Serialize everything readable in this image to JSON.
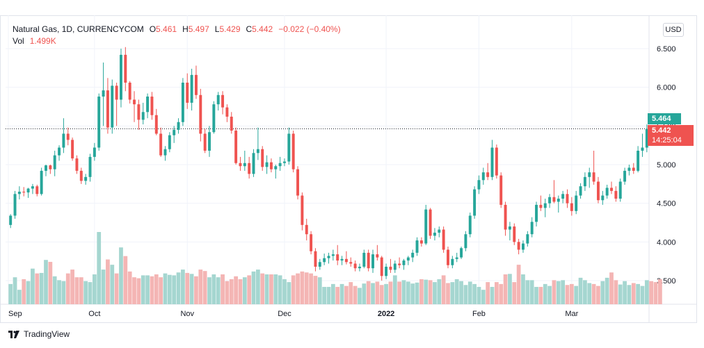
{
  "legend": {
    "symbol": "Natural Gas, 1D, CURRENCYCOM",
    "o_label": "O",
    "o_value": "5.461",
    "h_label": "H",
    "h_value": "5.497",
    "l_label": "L",
    "l_value": "5.429",
    "c_label": "C",
    "c_value": "5.442",
    "change": "−0.022 (−0.40%)",
    "vol_label": "Vol",
    "vol_value": "1.499K"
  },
  "currency_button": "USD",
  "price_tags": {
    "bid": "5.464",
    "last": "5.442",
    "countdown": "14:25:04"
  },
  "footer": {
    "brand": "TradingView"
  },
  "colors": {
    "up": "#26a69a",
    "down": "#ef5350",
    "up_vol": "#a5d6d0",
    "down_vol": "#f4b5b4"
  },
  "chart_data": {
    "type": "candlestick",
    "yaxis": {
      "range": [
        3.25,
        6.6
      ],
      "ticks": [
        "6.500",
        "6.000",
        "5.500",
        "5.000",
        "4.500",
        "4.000",
        "3.500"
      ]
    },
    "xaxis": {
      "labels": [
        "Sep",
        "Oct",
        "Nov",
        "Dec",
        "2022",
        "Feb",
        "Mar"
      ]
    },
    "last_price_line": 5.464,
    "candles": [
      {
        "o": 4.22,
        "h": 4.36,
        "l": 4.18,
        "c": 4.34
      },
      {
        "o": 4.34,
        "h": 4.66,
        "l": 4.3,
        "c": 4.62
      },
      {
        "o": 4.62,
        "h": 4.72,
        "l": 4.55,
        "c": 4.65
      },
      {
        "o": 4.65,
        "h": 4.71,
        "l": 4.59,
        "c": 4.64
      },
      {
        "o": 4.64,
        "h": 4.7,
        "l": 4.57,
        "c": 4.69
      },
      {
        "o": 4.69,
        "h": 4.75,
        "l": 4.62,
        "c": 4.72
      },
      {
        "o": 4.72,
        "h": 4.74,
        "l": 4.59,
        "c": 4.62
      },
      {
        "o": 4.62,
        "h": 4.96,
        "l": 4.6,
        "c": 4.92
      },
      {
        "o": 4.92,
        "h": 5.0,
        "l": 4.85,
        "c": 4.99
      },
      {
        "o": 4.99,
        "h": 5.0,
        "l": 4.88,
        "c": 4.94
      },
      {
        "o": 4.94,
        "h": 5.18,
        "l": 4.85,
        "c": 5.12
      },
      {
        "o": 5.12,
        "h": 5.25,
        "l": 5.05,
        "c": 5.22
      },
      {
        "o": 5.22,
        "h": 5.6,
        "l": 5.15,
        "c": 5.4
      },
      {
        "o": 5.4,
        "h": 5.48,
        "l": 5.25,
        "c": 5.32
      },
      {
        "o": 5.32,
        "h": 5.35,
        "l": 5.05,
        "c": 5.08
      },
      {
        "o": 5.08,
        "h": 5.12,
        "l": 4.88,
        "c": 4.92
      },
      {
        "o": 4.92,
        "h": 4.96,
        "l": 4.75,
        "c": 4.79
      },
      {
        "o": 4.79,
        "h": 4.88,
        "l": 4.74,
        "c": 4.84
      },
      {
        "o": 4.84,
        "h": 5.14,
        "l": 4.78,
        "c": 5.1
      },
      {
        "o": 5.1,
        "h": 5.28,
        "l": 5.05,
        "c": 5.22
      },
      {
        "o": 5.22,
        "h": 5.92,
        "l": 5.18,
        "c": 5.88
      },
      {
        "o": 5.88,
        "h": 6.32,
        "l": 5.5,
        "c": 5.96
      },
      {
        "o": 5.96,
        "h": 6.12,
        "l": 5.4,
        "c": 5.48
      },
      {
        "o": 5.48,
        "h": 6.1,
        "l": 5.4,
        "c": 6.02
      },
      {
        "o": 6.02,
        "h": 6.06,
        "l": 5.5,
        "c": 5.84
      },
      {
        "o": 5.84,
        "h": 6.5,
        "l": 5.74,
        "c": 6.42
      },
      {
        "o": 6.42,
        "h": 6.52,
        "l": 5.95,
        "c": 6.06
      },
      {
        "o": 6.06,
        "h": 6.08,
        "l": 5.79,
        "c": 5.84
      },
      {
        "o": 5.84,
        "h": 5.95,
        "l": 5.55,
        "c": 5.78
      },
      {
        "o": 5.78,
        "h": 5.84,
        "l": 5.45,
        "c": 5.58
      },
      {
        "o": 5.58,
        "h": 5.8,
        "l": 5.52,
        "c": 5.68
      },
      {
        "o": 5.68,
        "h": 5.92,
        "l": 5.6,
        "c": 5.88
      },
      {
        "o": 5.88,
        "h": 5.94,
        "l": 5.58,
        "c": 5.64
      },
      {
        "o": 5.64,
        "h": 5.72,
        "l": 5.38,
        "c": 5.4
      },
      {
        "o": 5.4,
        "h": 5.48,
        "l": 5.1,
        "c": 5.12
      },
      {
        "o": 5.12,
        "h": 5.24,
        "l": 5.05,
        "c": 5.2
      },
      {
        "o": 5.2,
        "h": 5.42,
        "l": 5.16,
        "c": 5.38
      },
      {
        "o": 5.38,
        "h": 5.5,
        "l": 5.28,
        "c": 5.45
      },
      {
        "o": 5.45,
        "h": 5.6,
        "l": 5.4,
        "c": 5.55
      },
      {
        "o": 5.55,
        "h": 6.12,
        "l": 5.5,
        "c": 6.06
      },
      {
        "o": 6.06,
        "h": 6.18,
        "l": 5.72,
        "c": 5.8
      },
      {
        "o": 5.8,
        "h": 6.24,
        "l": 5.7,
        "c": 6.16
      },
      {
        "o": 6.16,
        "h": 6.28,
        "l": 5.85,
        "c": 5.9
      },
      {
        "o": 5.9,
        "h": 5.98,
        "l": 5.3,
        "c": 5.4
      },
      {
        "o": 5.4,
        "h": 5.46,
        "l": 5.15,
        "c": 5.18
      },
      {
        "o": 5.18,
        "h": 5.5,
        "l": 5.1,
        "c": 5.42
      },
      {
        "o": 5.42,
        "h": 5.82,
        "l": 5.4,
        "c": 5.78
      },
      {
        "o": 5.78,
        "h": 5.94,
        "l": 5.7,
        "c": 5.9
      },
      {
        "o": 5.9,
        "h": 5.95,
        "l": 5.65,
        "c": 5.74
      },
      {
        "o": 5.74,
        "h": 5.78,
        "l": 5.55,
        "c": 5.62
      },
      {
        "o": 5.62,
        "h": 5.68,
        "l": 5.4,
        "c": 5.44
      },
      {
        "o": 5.44,
        "h": 5.48,
        "l": 5.0,
        "c": 5.02
      },
      {
        "o": 5.02,
        "h": 5.1,
        "l": 4.92,
        "c": 4.98
      },
      {
        "o": 4.98,
        "h": 5.18,
        "l": 4.92,
        "c": 5.02
      },
      {
        "o": 5.02,
        "h": 5.1,
        "l": 4.82,
        "c": 4.88
      },
      {
        "o": 4.88,
        "h": 5.2,
        "l": 4.84,
        "c": 5.15
      },
      {
        "o": 5.15,
        "h": 5.48,
        "l": 5.06,
        "c": 5.2
      },
      {
        "o": 5.2,
        "h": 5.24,
        "l": 4.92,
        "c": 4.97
      },
      {
        "o": 4.97,
        "h": 5.12,
        "l": 4.88,
        "c": 5.03
      },
      {
        "o": 5.03,
        "h": 5.08,
        "l": 4.9,
        "c": 4.94
      },
      {
        "o": 4.94,
        "h": 5.0,
        "l": 4.82,
        "c": 4.98
      },
      {
        "o": 4.98,
        "h": 5.1,
        "l": 4.92,
        "c": 5.02
      },
      {
        "o": 5.02,
        "h": 5.08,
        "l": 4.98,
        "c": 5.04
      },
      {
        "o": 5.04,
        "h": 5.48,
        "l": 5.0,
        "c": 5.4
      },
      {
        "o": 5.4,
        "h": 5.44,
        "l": 4.9,
        "c": 4.94
      },
      {
        "o": 4.94,
        "h": 4.98,
        "l": 4.55,
        "c": 4.6
      },
      {
        "o": 4.6,
        "h": 4.64,
        "l": 4.15,
        "c": 4.22
      },
      {
        "o": 4.22,
        "h": 4.3,
        "l": 4.02,
        "c": 4.1
      },
      {
        "o": 4.1,
        "h": 4.14,
        "l": 3.84,
        "c": 3.88
      },
      {
        "o": 3.88,
        "h": 3.92,
        "l": 3.62,
        "c": 3.68
      },
      {
        "o": 3.68,
        "h": 3.78,
        "l": 3.64,
        "c": 3.74
      },
      {
        "o": 3.74,
        "h": 3.85,
        "l": 3.7,
        "c": 3.79
      },
      {
        "o": 3.79,
        "h": 3.86,
        "l": 3.72,
        "c": 3.82
      },
      {
        "o": 3.82,
        "h": 3.9,
        "l": 3.76,
        "c": 3.84
      },
      {
        "o": 3.84,
        "h": 3.96,
        "l": 3.7,
        "c": 3.76
      },
      {
        "o": 3.76,
        "h": 3.82,
        "l": 3.7,
        "c": 3.78
      },
      {
        "o": 3.78,
        "h": 3.88,
        "l": 3.71,
        "c": 3.74
      },
      {
        "o": 3.74,
        "h": 3.8,
        "l": 3.68,
        "c": 3.72
      },
      {
        "o": 3.72,
        "h": 3.76,
        "l": 3.62,
        "c": 3.66
      },
      {
        "o": 3.66,
        "h": 3.72,
        "l": 3.62,
        "c": 3.68
      },
      {
        "o": 3.68,
        "h": 3.9,
        "l": 3.66,
        "c": 3.86
      },
      {
        "o": 3.86,
        "h": 3.9,
        "l": 3.62,
        "c": 3.66
      },
      {
        "o": 3.66,
        "h": 3.9,
        "l": 3.6,
        "c": 3.84
      },
      {
        "o": 3.84,
        "h": 3.96,
        "l": 3.76,
        "c": 3.8
      },
      {
        "o": 3.8,
        "h": 3.82,
        "l": 3.5,
        "c": 3.56
      },
      {
        "o": 3.56,
        "h": 3.72,
        "l": 3.52,
        "c": 3.68
      },
      {
        "o": 3.68,
        "h": 3.78,
        "l": 3.6,
        "c": 3.64
      },
      {
        "o": 3.64,
        "h": 3.76,
        "l": 3.6,
        "c": 3.72
      },
      {
        "o": 3.72,
        "h": 3.8,
        "l": 3.66,
        "c": 3.7
      },
      {
        "o": 3.7,
        "h": 3.78,
        "l": 3.64,
        "c": 3.76
      },
      {
        "o": 3.76,
        "h": 3.82,
        "l": 3.7,
        "c": 3.8
      },
      {
        "o": 3.8,
        "h": 3.9,
        "l": 3.74,
        "c": 3.86
      },
      {
        "o": 3.86,
        "h": 4.06,
        "l": 3.82,
        "c": 4.02
      },
      {
        "o": 4.02,
        "h": 4.06,
        "l": 3.94,
        "c": 3.98
      },
      {
        "o": 3.98,
        "h": 4.48,
        "l": 3.96,
        "c": 4.42
      },
      {
        "o": 4.42,
        "h": 4.44,
        "l": 4.04,
        "c": 4.08
      },
      {
        "o": 4.08,
        "h": 4.18,
        "l": 4.02,
        "c": 4.12
      },
      {
        "o": 4.12,
        "h": 4.2,
        "l": 4.06,
        "c": 4.16
      },
      {
        "o": 4.16,
        "h": 4.2,
        "l": 3.86,
        "c": 3.9
      },
      {
        "o": 3.9,
        "h": 3.94,
        "l": 3.66,
        "c": 3.7
      },
      {
        "o": 3.7,
        "h": 3.82,
        "l": 3.66,
        "c": 3.78
      },
      {
        "o": 3.78,
        "h": 3.86,
        "l": 3.74,
        "c": 3.8
      },
      {
        "o": 3.8,
        "h": 3.94,
        "l": 3.78,
        "c": 3.92
      },
      {
        "o": 3.92,
        "h": 4.14,
        "l": 3.88,
        "c": 4.1
      },
      {
        "o": 4.1,
        "h": 4.38,
        "l": 4.06,
        "c": 4.34
      },
      {
        "o": 4.34,
        "h": 4.72,
        "l": 4.3,
        "c": 4.68
      },
      {
        "o": 4.68,
        "h": 4.86,
        "l": 4.62,
        "c": 4.8
      },
      {
        "o": 4.8,
        "h": 4.96,
        "l": 4.74,
        "c": 4.9
      },
      {
        "o": 4.9,
        "h": 5.02,
        "l": 4.8,
        "c": 4.84
      },
      {
        "o": 4.84,
        "h": 5.32,
        "l": 4.8,
        "c": 5.22
      },
      {
        "o": 5.22,
        "h": 5.26,
        "l": 4.82,
        "c": 4.86
      },
      {
        "o": 4.86,
        "h": 4.9,
        "l": 4.44,
        "c": 4.48
      },
      {
        "o": 4.48,
        "h": 4.52,
        "l": 4.08,
        "c": 4.16
      },
      {
        "o": 4.16,
        "h": 4.26,
        "l": 4.02,
        "c": 4.2
      },
      {
        "o": 4.2,
        "h": 4.24,
        "l": 3.96,
        "c": 4.0
      },
      {
        "o": 4.0,
        "h": 4.04,
        "l": 3.84,
        "c": 3.9
      },
      {
        "o": 3.9,
        "h": 4.02,
        "l": 3.86,
        "c": 3.98
      },
      {
        "o": 3.98,
        "h": 4.14,
        "l": 3.94,
        "c": 4.1
      },
      {
        "o": 4.1,
        "h": 4.32,
        "l": 4.06,
        "c": 4.26
      },
      {
        "o": 4.26,
        "h": 4.52,
        "l": 4.2,
        "c": 4.48
      },
      {
        "o": 4.48,
        "h": 4.6,
        "l": 4.4,
        "c": 4.44
      },
      {
        "o": 4.44,
        "h": 4.56,
        "l": 4.32,
        "c": 4.5
      },
      {
        "o": 4.5,
        "h": 4.62,
        "l": 4.44,
        "c": 4.58
      },
      {
        "o": 4.58,
        "h": 4.8,
        "l": 4.5,
        "c": 4.52
      },
      {
        "o": 4.52,
        "h": 4.6,
        "l": 4.38,
        "c": 4.56
      },
      {
        "o": 4.56,
        "h": 4.66,
        "l": 4.5,
        "c": 4.62
      },
      {
        "o": 4.62,
        "h": 4.68,
        "l": 4.44,
        "c": 4.5
      },
      {
        "o": 4.5,
        "h": 4.58,
        "l": 4.34,
        "c": 4.4
      },
      {
        "o": 4.4,
        "h": 4.66,
        "l": 4.36,
        "c": 4.6
      },
      {
        "o": 4.6,
        "h": 4.76,
        "l": 4.56,
        "c": 4.72
      },
      {
        "o": 4.72,
        "h": 4.9,
        "l": 4.66,
        "c": 4.84
      },
      {
        "o": 4.84,
        "h": 4.96,
        "l": 4.7,
        "c": 4.9
      },
      {
        "o": 4.9,
        "h": 5.18,
        "l": 4.74,
        "c": 4.78
      },
      {
        "o": 4.78,
        "h": 4.84,
        "l": 4.5,
        "c": 4.54
      },
      {
        "o": 4.54,
        "h": 4.66,
        "l": 4.48,
        "c": 4.6
      },
      {
        "o": 4.6,
        "h": 4.74,
        "l": 4.56,
        "c": 4.7
      },
      {
        "o": 4.7,
        "h": 4.78,
        "l": 4.62,
        "c": 4.66
      },
      {
        "o": 4.66,
        "h": 4.72,
        "l": 4.52,
        "c": 4.56
      },
      {
        "o": 4.56,
        "h": 4.82,
        "l": 4.52,
        "c": 4.78
      },
      {
        "o": 4.78,
        "h": 4.96,
        "l": 4.74,
        "c": 4.92
      },
      {
        "o": 4.92,
        "h": 5.0,
        "l": 4.86,
        "c": 4.96
      },
      {
        "o": 4.96,
        "h": 5.02,
        "l": 4.88,
        "c": 4.92
      },
      {
        "o": 4.92,
        "h": 5.24,
        "l": 4.9,
        "c": 5.18
      },
      {
        "o": 5.18,
        "h": 5.4,
        "l": 5.1,
        "c": 5.22
      },
      {
        "o": 5.22,
        "h": 5.52,
        "l": 5.16,
        "c": 5.461
      }
    ],
    "volume": [
      420,
      560,
      300,
      520,
      480,
      740,
      640,
      650,
      920,
      880,
      580,
      500,
      480,
      640,
      720,
      560,
      560,
      480,
      460,
      620,
      1500,
      720,
      930,
      820,
      640,
      1180,
      1000,
      680,
      560,
      540,
      600,
      600,
      580,
      620,
      560,
      640,
      610,
      600,
      660,
      720,
      650,
      630,
      580,
      720,
      690,
      560,
      620,
      560,
      620,
      480,
      520,
      580,
      520,
      560,
      600,
      680,
      720,
      640,
      620,
      620,
      620,
      600,
      520,
      460,
      600,
      640,
      680,
      660,
      640,
      590,
      560,
      360,
      360,
      420,
      360,
      420,
      380,
      460,
      380,
      340,
      430,
      480,
      440,
      470,
      400,
      420,
      470,
      600,
      470,
      500,
      470,
      430,
      450,
      520,
      510,
      500,
      460,
      520,
      600,
      440,
      460,
      520,
      480,
      400,
      470,
      420,
      360,
      300,
      460,
      360,
      460,
      420,
      620,
      630,
      460,
      820,
      620,
      500,
      500,
      360,
      360,
      420,
      380,
      500,
      480,
      500,
      400,
      420,
      380,
      550,
      500,
      440,
      420,
      380,
      480,
      550,
      660,
      500,
      410,
      480,
      400,
      440,
      420,
      380,
      500,
      480,
      460,
      520
    ]
  }
}
